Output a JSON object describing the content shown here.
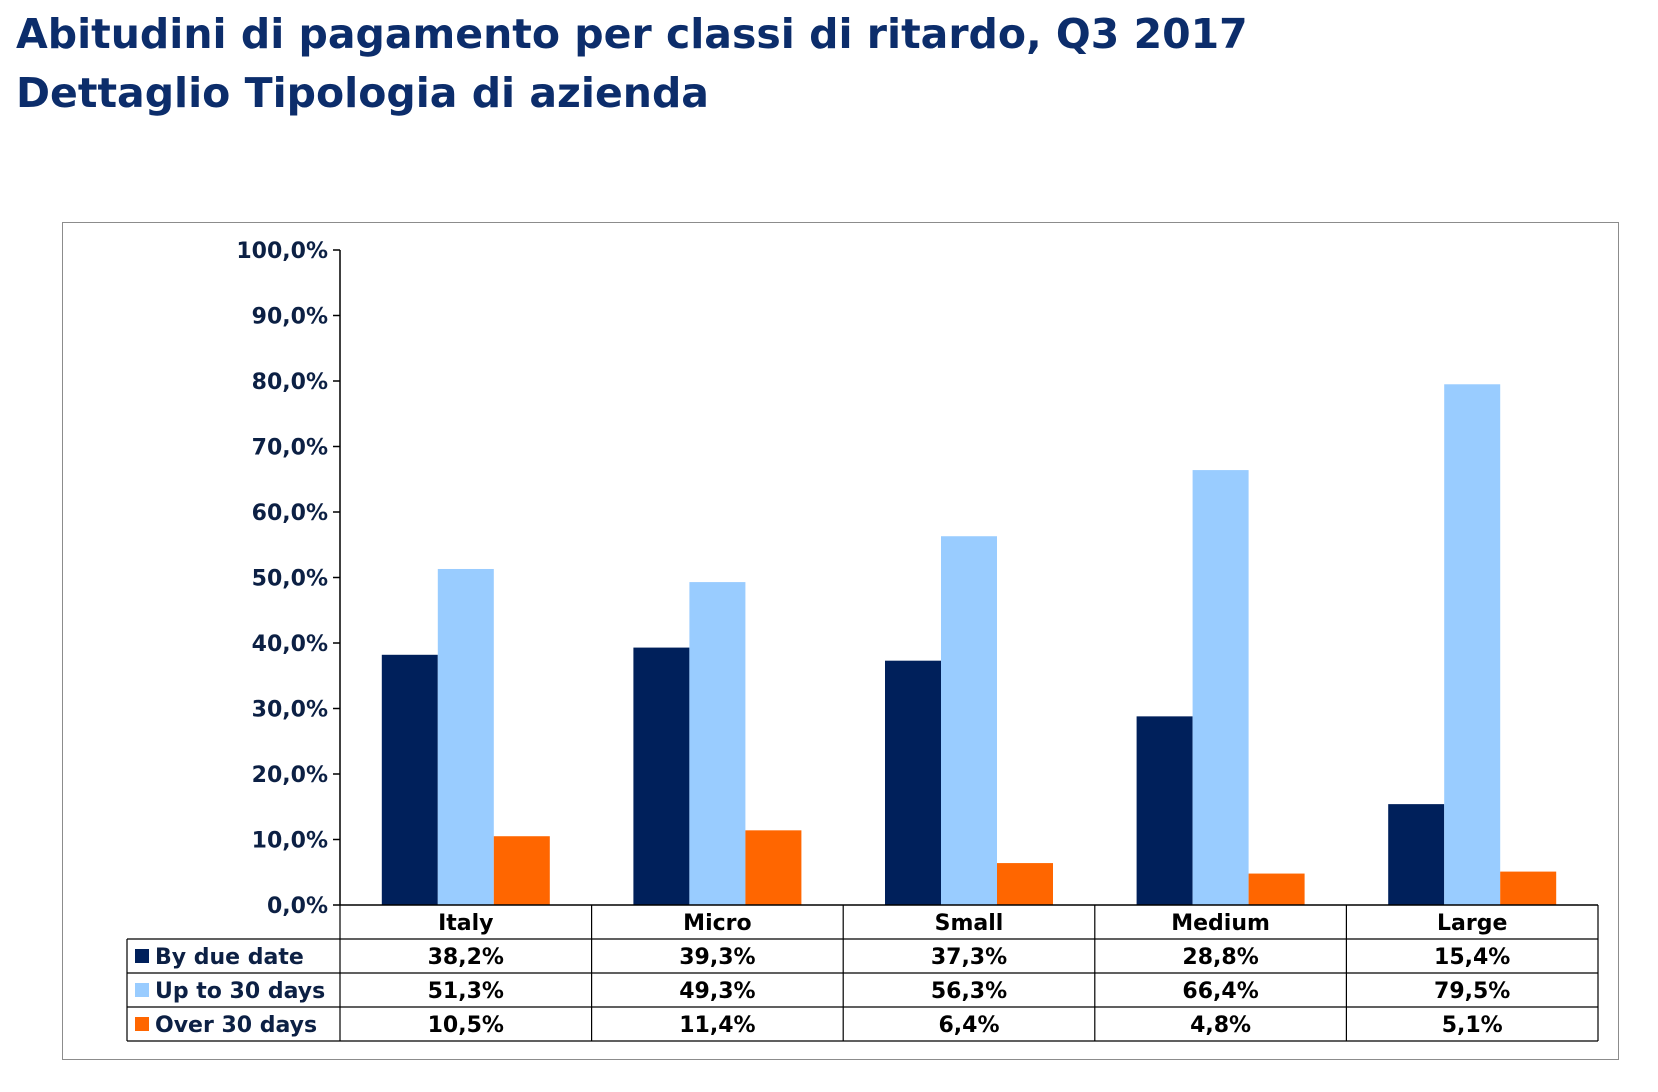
{
  "header": {
    "title": "Abitudini di pagamento per classi di ritardo, Q3 2017",
    "subtitle": "Dettaglio Tipologia di azienda"
  },
  "chart_data": {
    "type": "bar",
    "title": "",
    "xlabel": "",
    "ylabel": "",
    "categories": [
      "Italy",
      "Micro",
      "Small",
      "Medium",
      "Large"
    ],
    "series": [
      {
        "name": "By due date",
        "color": "#00205b",
        "values": [
          38.2,
          39.3,
          37.3,
          28.8,
          15.4
        ],
        "labels": [
          "38,2%",
          "39,3%",
          "37,3%",
          "28,8%",
          "15,4%"
        ]
      },
      {
        "name": "Up to 30 days",
        "color": "#99ccff",
        "values": [
          51.3,
          49.3,
          56.3,
          66.4,
          79.5
        ],
        "labels": [
          "51,3%",
          "49,3%",
          "56,3%",
          "66,4%",
          "79,5%"
        ]
      },
      {
        "name": "Over 30 days",
        "color": "#ff6600",
        "values": [
          10.5,
          11.4,
          6.4,
          4.8,
          5.1
        ],
        "labels": [
          "10,5%",
          "11,4%",
          "6,4%",
          "4,8%",
          "5,1%"
        ]
      }
    ],
    "ylim": [
      0,
      100
    ],
    "yticks": [
      0,
      10,
      20,
      30,
      40,
      50,
      60,
      70,
      80,
      90,
      100
    ],
    "ytick_labels": [
      "0,0%",
      "10,0%",
      "20,0%",
      "30,0%",
      "40,0%",
      "50,0%",
      "60,0%",
      "70,0%",
      "80,0%",
      "90,0%",
      "100,0%"
    ],
    "grid": false,
    "legend": "data-table"
  }
}
